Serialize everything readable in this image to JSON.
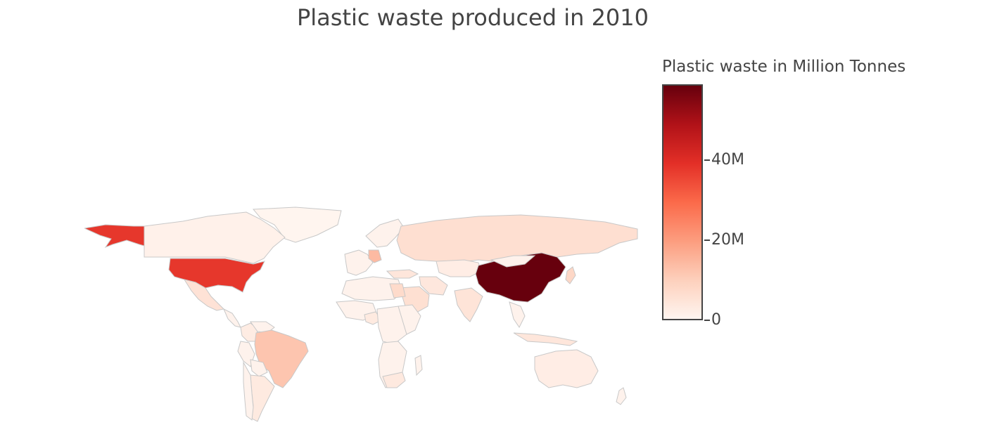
{
  "title": "Plastic waste produced in 2010",
  "colorbar": {
    "title": "Plastic waste in Million Tonnes",
    "min": 0,
    "max": 59,
    "ticks": [
      {
        "value": 0,
        "label": "0"
      },
      {
        "value": 20000000,
        "label": "20M"
      },
      {
        "value": 40000000,
        "label": "40M"
      }
    ],
    "max_value": 59000000,
    "colors": [
      "#fff5f0",
      "#fdd0bc",
      "#fc9d7f",
      "#fb6a4a",
      "#e32f27",
      "#b11218",
      "#67000d"
    ]
  },
  "map": {
    "projection": "equirectangular",
    "border_color": "#c8c8c8",
    "countries": [
      {
        "name": "United States",
        "value": 38000000
      },
      {
        "name": "China",
        "value": 59000000
      },
      {
        "name": "Brazil",
        "value": 12000000
      },
      {
        "name": "Germany",
        "value": 14000000
      },
      {
        "name": "Russia",
        "value": 5800000
      },
      {
        "name": "India",
        "value": 4500000
      },
      {
        "name": "Canada",
        "value": 1100000
      },
      {
        "name": "Mexico",
        "value": 5000000
      },
      {
        "name": "Argentina",
        "value": 3000000
      },
      {
        "name": "Australia",
        "value": 2000000
      },
      {
        "name": "Egypt",
        "value": 7000000
      },
      {
        "name": "Japan",
        "value": 7900000
      },
      {
        "name": "Kazakhstan",
        "value": 2000000
      },
      {
        "name": "Saudi Arabia",
        "value": 5600000
      },
      {
        "name": "Iran",
        "value": 3600000
      },
      {
        "name": "Indonesia",
        "value": 4000000
      },
      {
        "name": "South Africa",
        "value": 3300000
      },
      {
        "name": "Nigeria",
        "value": 3000000
      },
      {
        "name": "Colombia",
        "value": 2500000
      },
      {
        "name": "Turkey",
        "value": 4000000
      },
      {
        "name": "Greenland",
        "value": 100000
      }
    ]
  }
}
